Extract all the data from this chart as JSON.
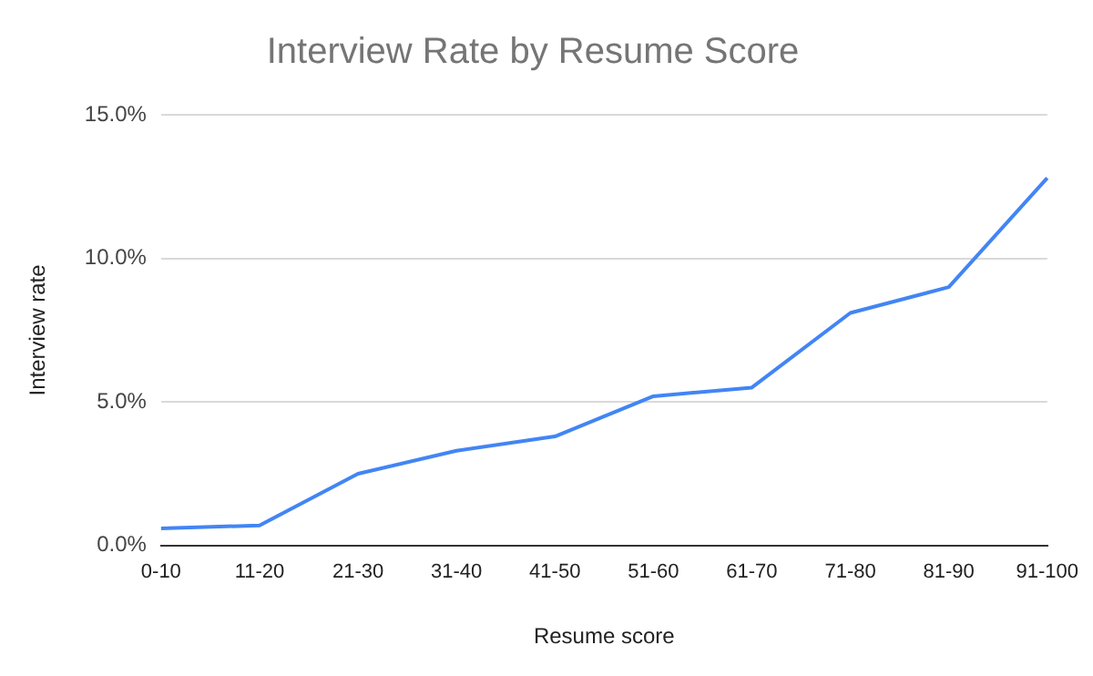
{
  "chart_data": {
    "type": "line",
    "title": "Interview Rate by Resume Score",
    "xlabel": "Resume score",
    "ylabel": "Interview rate",
    "categories": [
      "0-10",
      "11-20",
      "21-30",
      "31-40",
      "41-50",
      "51-60",
      "61-70",
      "71-80",
      "81-90",
      "91-100"
    ],
    "series": [
      {
        "color": "#4285f4",
        "values": [
          0.6,
          0.7,
          2.5,
          3.3,
          3.8,
          5.2,
          5.5,
          8.1,
          9.0,
          12.8
        ]
      }
    ],
    "ylim": [
      0,
      15
    ],
    "yticks": [
      {
        "value": 0,
        "label": "0.0%"
      },
      {
        "value": 5,
        "label": "5.0%"
      },
      {
        "value": 10,
        "label": "10.0%"
      },
      {
        "value": 15,
        "label": "15.0%"
      }
    ],
    "grid": "y",
    "legend": false,
    "marker": "none",
    "line_style": "solid"
  }
}
